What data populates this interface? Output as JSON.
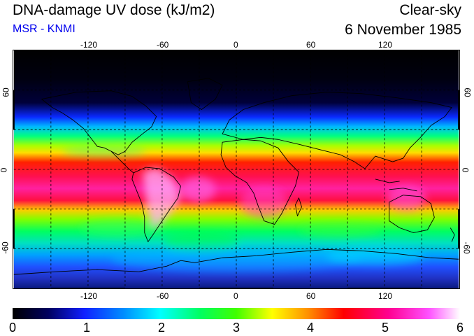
{
  "header": {
    "title": "DNA-damage UV dose (kJ/m2)",
    "credit": "MSR - KNMI",
    "condition": "Clear-sky",
    "date": "6 November 1985"
  },
  "colors": {
    "credit": "#0000ee",
    "land_outline": "#000000",
    "grid": "#000000"
  },
  "axes": {
    "longitude_labels": [
      "-120",
      "-60",
      "0",
      "60",
      "120"
    ],
    "latitude_labels": [
      "60",
      "0",
      "-60"
    ],
    "longitude_range": [
      -180,
      180
    ],
    "latitude_range": [
      -90,
      90
    ]
  },
  "colorbar": {
    "labels": [
      "0",
      "1",
      "2",
      "3",
      "4",
      "5",
      "6"
    ],
    "range": [
      0,
      6
    ]
  },
  "map": {
    "field": "DNA-damage UV dose",
    "grid": "dashed every 30 degrees"
  }
}
